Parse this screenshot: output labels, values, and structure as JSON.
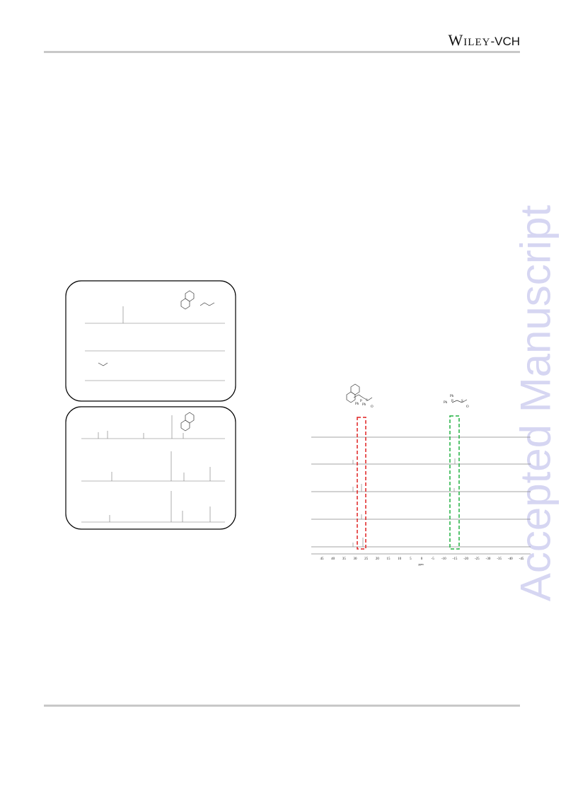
{
  "header": {
    "logo_main": "Wiley",
    "logo_suffix": "-VCH"
  },
  "watermark": "Accepted Manuscript",
  "figure": {
    "ligand_label": {
      "ph1": "Ph",
      "p": "P",
      "ph2": "Ph",
      "s": "S",
      "o": "O"
    },
    "complex_label": {
      "ph1": "Ph",
      "p": "P",
      "ph2": "Ph",
      "s": "S",
      "o": "O"
    },
    "spectrum_axis": {
      "ticks": [
        "45",
        "40",
        "35",
        "30",
        "25",
        "20",
        "15",
        "10",
        "5",
        "0",
        "-5",
        "-10",
        "-15",
        "-20",
        "-25",
        "-30",
        "-35",
        "-40",
        "-45"
      ],
      "unit": "ppm"
    }
  }
}
